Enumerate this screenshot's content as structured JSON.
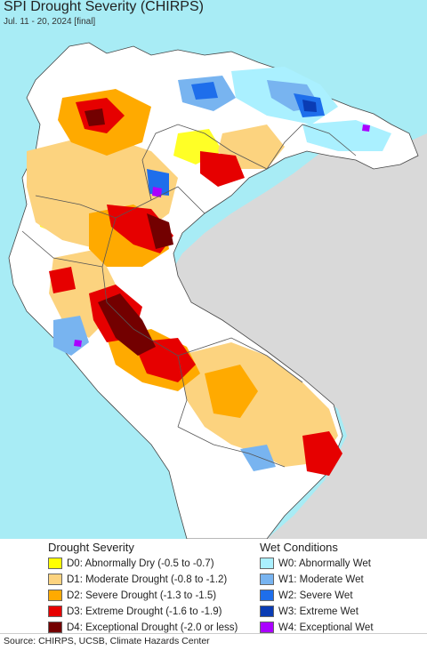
{
  "header": {
    "title": "SPI Drought Severity (CHIRPS)",
    "subtitle": "Jul. 11 - 20, 2024 [final]"
  },
  "legend": {
    "drought": {
      "title": "Drought Severity",
      "items": [
        {
          "label": "D0: Abnormally Dry (-0.5 to -0.7)",
          "color": "#ffff00"
        },
        {
          "label": "D1: Moderate Drought (-0.8 to -1.2)",
          "color": "#fcd37f"
        },
        {
          "label": "D2: Severe Drought (-1.3 to -1.5)",
          "color": "#ffaa00"
        },
        {
          "label": "D3: Extreme Drought (-1.6 to -1.9)",
          "color": "#e60000"
        },
        {
          "label": "D4: Exceptional Drought (-2.0 or less)",
          "color": "#730000"
        }
      ]
    },
    "wet": {
      "title": "Wet Conditions",
      "items": [
        {
          "label": "W0: Abnormally Wet",
          "color": "#aaf0ff"
        },
        {
          "label": "W1: Moderate Wet",
          "color": "#78b4f0"
        },
        {
          "label": "W2: Severe Wet",
          "color": "#1e6eeb"
        },
        {
          "label": "W3: Extreme Wet",
          "color": "#0a3cb4"
        },
        {
          "label": "W4: Exceptional Wet",
          "color": "#aa00ff"
        }
      ]
    }
  },
  "source": "Source: CHIRPS, UCSB, Climate Hazards Center",
  "colors": {
    "ocean": "#a8ecf5",
    "outside": "#d9d9d9",
    "land": "#ffffff",
    "borders": "#555555"
  }
}
